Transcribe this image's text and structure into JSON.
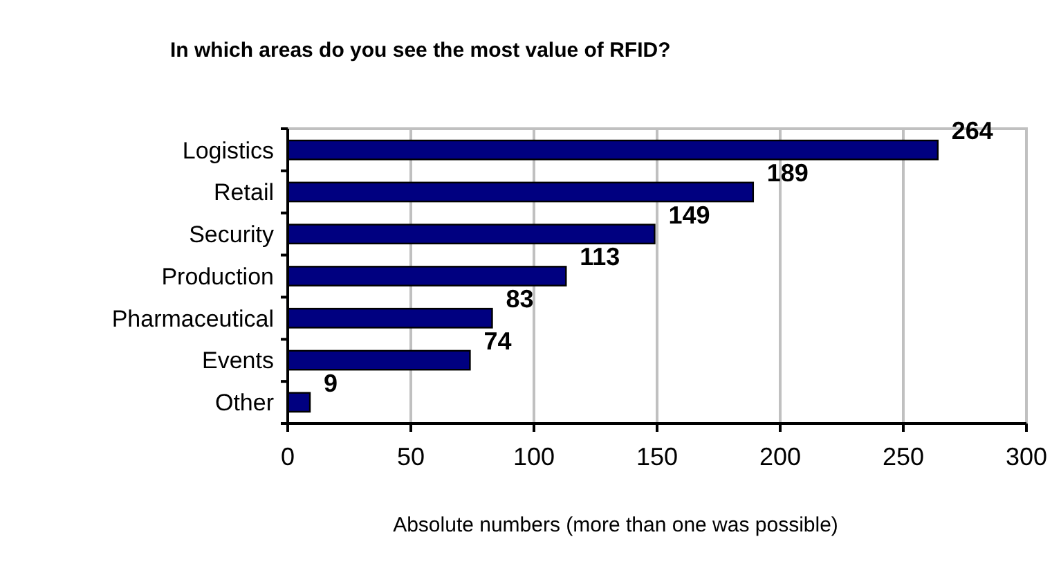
{
  "chart_data": {
    "type": "bar",
    "orientation": "horizontal",
    "title": "In which areas do you see the most value of RFID?",
    "xlabel": "Absolute numbers (more than one was possible)",
    "categories": [
      "Logistics",
      "Retail",
      "Security",
      "Production",
      "Pharmaceutical",
      "Events",
      "Other"
    ],
    "values": [
      264,
      189,
      149,
      113,
      83,
      74,
      9
    ],
    "color": "#000080",
    "data_labels": true,
    "grid": "x",
    "xlim": [
      0,
      300
    ],
    "xticks": [
      0,
      50,
      100,
      150,
      200,
      250,
      300
    ]
  }
}
